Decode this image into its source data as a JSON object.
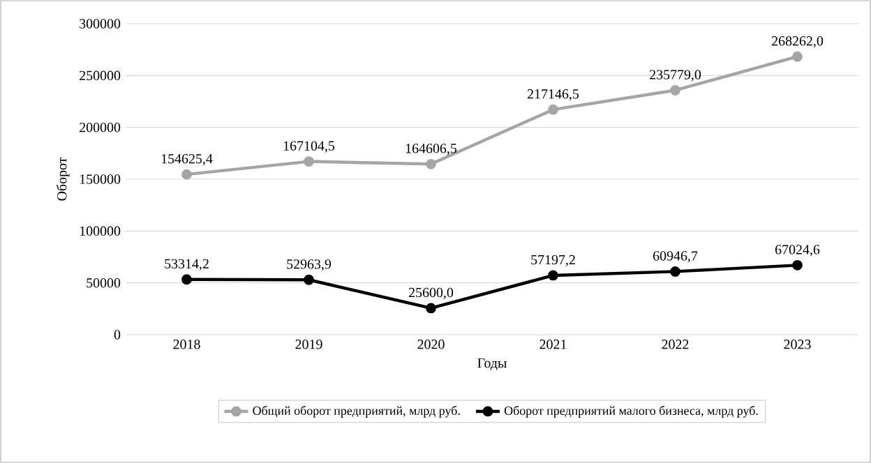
{
  "chart_data": {
    "type": "line",
    "xlabel": "Годы",
    "ylabel": "Оборот",
    "categories": [
      "2018",
      "2019",
      "2020",
      "2021",
      "2022",
      "2023"
    ],
    "series": [
      {
        "name": "Общий оборот предприятий, млрд руб.",
        "color": "#a5a5a5",
        "values": [
          154625.4,
          167104.5,
          164606.5,
          217146.5,
          235779.0,
          268262.0
        ],
        "value_labels": [
          "154625,4",
          "167104,5",
          "164606,5",
          "217146,5",
          "235779,0",
          "268262,0"
        ]
      },
      {
        "name": "Оборот предприятий малого бизнеса, млрд руб.",
        "color": "#000000",
        "values": [
          53314.2,
          52963.9,
          25600.0,
          57197.2,
          60946.7,
          67024.6
        ],
        "value_labels": [
          "53314,2",
          "52963,9",
          "25600,0",
          "57197,2",
          "60946,7",
          "67024,6"
        ]
      }
    ],
    "ylim": [
      0,
      300000
    ],
    "yticks": [
      0,
      50000,
      100000,
      150000,
      200000,
      250000,
      300000
    ],
    "grid": "y",
    "legend": "bottom",
    "marker": "circle"
  }
}
